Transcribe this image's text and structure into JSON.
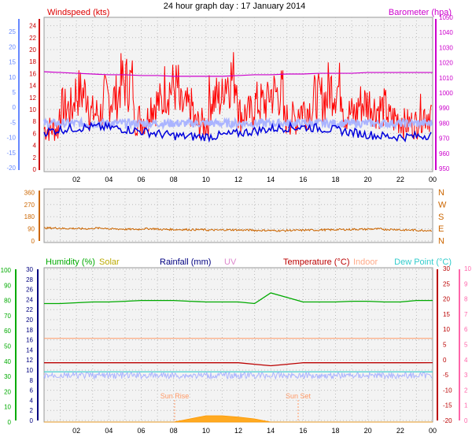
{
  "title": "24 hour graph day : 17 January 2014",
  "x_ticks": [
    "02",
    "04",
    "06",
    "08",
    "10",
    "12",
    "14",
    "16",
    "18",
    "20",
    "22",
    "00"
  ],
  "colors": {
    "wind_red": "#ff0000",
    "gust_blue": "#0000dd",
    "avg_lightblue": "#aab4ff",
    "baro_magenta": "#cc00cc",
    "dir_orange": "#cc6600",
    "humidity_green": "#00aa00",
    "solar_olive": "#bbaa00",
    "rain_navy": "#000080",
    "uv_pink": "#dd88cc",
    "temp_darkred": "#bb0000",
    "indoor_peach": "#ffaa88",
    "dew_cyan": "#33cccc",
    "axis_pink": "#ff66aa"
  },
  "panel1": {
    "left_label": "Windspeed (kts)",
    "right_label": "Barometer (hpa)",
    "left_ticks": [
      "0",
      "2",
      "4",
      "6",
      "8",
      "10",
      "12",
      "14",
      "16",
      "18",
      "20",
      "22",
      "24"
    ],
    "right_ticks": [
      "950",
      "960",
      "970",
      "980",
      "990",
      "1000",
      "1010",
      "1020",
      "1030",
      "1040",
      "1050"
    ],
    "outer_ticks": [
      "-20",
      "-15",
      "-10",
      "-5",
      "0",
      "5",
      "10",
      "15",
      "20",
      "25"
    ]
  },
  "panel2": {
    "left_ticks": [
      "0",
      "45",
      "90",
      "135",
      "180",
      "225",
      "270",
      "315",
      "360"
    ],
    "compass": [
      "N",
      "W",
      "S",
      "E",
      "N"
    ]
  },
  "panel3": {
    "legend": {
      "humidity": "Humidity (%)",
      "solar": "Solar",
      "rainfall": "Rainfall (mm)",
      "uv": "UV",
      "temperature": "Temperature (°C)",
      "indoor": "Indoor",
      "dewpoint": "Dew Point (°C)"
    },
    "outer_left_ticks": [
      "0",
      "10",
      "20",
      "30",
      "40",
      "50",
      "60",
      "70",
      "80",
      "90",
      "100"
    ],
    "left_ticks": [
      "0",
      "2",
      "4",
      "6",
      "8",
      "10",
      "12",
      "14",
      "16",
      "18",
      "20",
      "22",
      "24",
      "26",
      "28",
      "30"
    ],
    "right_ticks": [
      "-20",
      "-15",
      "-10",
      "-5",
      "0",
      "5",
      "10",
      "15",
      "20",
      "25",
      "30"
    ],
    "outer_right_ticks": [
      "0",
      "1",
      "2",
      "3",
      "4",
      "5",
      "6",
      "7",
      "8",
      "9",
      "10"
    ],
    "sunrise_label": "Sun Rise",
    "sunset_label": "Sun Set",
    "bottom_sunrise": "Sun Rise",
    "bottom_sunset": "Sun Set",
    "bottom_sun_tick": "Sun Set"
  },
  "chart_data": [
    {
      "type": "line",
      "title": "24 hour graph day : 17 January 2014",
      "x_range_hours": [
        0,
        24
      ],
      "series": [
        {
          "name": "Windspeed (kts)",
          "note": "gust, highly variable",
          "values": [
            8,
            12,
            15,
            11,
            14,
            17,
            10,
            13,
            16,
            12,
            9,
            14,
            18,
            11,
            13,
            15,
            10,
            12,
            14,
            16,
            11,
            13,
            12,
            10,
            9,
            11
          ]
        },
        {
          "name": "Barometer (hpa)",
          "values": [
            1014,
            1013.5,
            1013,
            1012.5,
            1012,
            1012,
            1011.5,
            1011.5,
            1011,
            1011,
            1011,
            1011,
            1011.5,
            1012,
            1012,
            1012.5,
            1012.5,
            1013,
            1013,
            1013,
            1013.5,
            1013.5,
            1013.5,
            1013.5
          ]
        }
      ],
      "ylim_left": [
        0,
        25
      ],
      "ylim_right": [
        950,
        1050
      ]
    },
    {
      "type": "line",
      "series": [
        {
          "name": "Wind direction",
          "values": [
            95,
            92,
            90,
            94,
            88,
            86,
            90,
            85,
            84,
            83,
            80,
            82,
            80,
            78,
            76,
            78,
            80,
            82,
            84,
            86,
            88,
            85,
            80,
            78
          ]
        }
      ],
      "ylim": [
        0,
        360
      ]
    },
    {
      "type": "line",
      "series": [
        {
          "name": "Humidity (%)",
          "values": [
            78,
            78,
            78.5,
            79,
            79,
            79.5,
            80,
            80,
            80,
            79.5,
            79,
            79,
            79,
            78,
            85,
            82,
            79,
            79,
            79,
            79.5,
            79.5,
            79,
            79,
            80
          ]
        },
        {
          "name": "Temperature (°C)",
          "values": [
            -1,
            -1,
            -1,
            -1,
            -1,
            -1,
            -1,
            -1,
            -1,
            -1,
            -1,
            -1,
            -1,
            -1.5,
            -2,
            -1.5,
            -1,
            -1,
            -1,
            -1,
            -1,
            -1,
            -1,
            -1
          ]
        },
        {
          "name": "Dew Point (°C)",
          "values": [
            -4,
            -4,
            -4,
            -4,
            -4,
            -4,
            -4,
            -4,
            -4,
            -4,
            -4,
            -4,
            -4,
            -4,
            -4,
            -4,
            -4,
            -4,
            -4,
            -4,
            -4,
            -4,
            -4,
            -4
          ]
        },
        {
          "name": "Solar",
          "values": [
            0,
            0,
            0,
            0,
            0,
            0,
            0,
            0,
            0,
            0.5,
            1,
            1,
            0.8,
            0.5,
            0,
            0,
            0,
            0,
            0,
            0,
            0,
            0,
            0,
            0
          ]
        }
      ],
      "ylim_right": [
        -20,
        30
      ]
    }
  ]
}
